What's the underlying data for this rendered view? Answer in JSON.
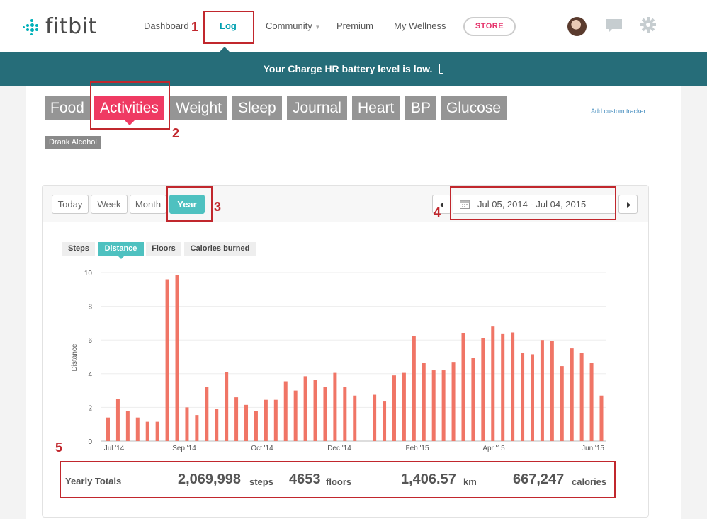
{
  "logo": {
    "text": "fitbit"
  },
  "nav": {
    "dashboard": "Dashboard",
    "log": "Log",
    "community": "Community",
    "premium": "Premium",
    "wellness": "My Wellness",
    "store": "STORE"
  },
  "banner": {
    "text": "Your Charge HR battery level is low."
  },
  "trackers": [
    "Food",
    "Activities",
    "Weight",
    "Sleep",
    "Journal",
    "Heart",
    "BP",
    "Glucose"
  ],
  "active_tracker": "Activities",
  "add_custom": "Add custom tracker",
  "drank_alcohol": "Drank Alcohol",
  "ranges": [
    "Today",
    "Week",
    "Month",
    "Year"
  ],
  "active_range": "Year",
  "date_range": "Jul 05, 2014 - Jul 04, 2015",
  "metrics": [
    "Steps",
    "Distance",
    "Floors",
    "Calories burned"
  ],
  "active_metric": "Distance",
  "chart_data": {
    "type": "bar",
    "title": "",
    "xlabel": "",
    "ylabel": "Distance",
    "ylim": [
      0,
      10
    ],
    "yticks": [
      "0",
      "2",
      "4",
      "6",
      "8",
      "10"
    ],
    "xticks": [
      "Jul '14",
      "Sep '14",
      "Oct '14",
      "Dec '14",
      "Feb '15",
      "Apr '15",
      "Jun '15"
    ],
    "values": [
      1.4,
      2.5,
      1.8,
      1.4,
      1.15,
      1.15,
      9.6,
      9.85,
      2.0,
      1.55,
      3.2,
      1.9,
      4.1,
      2.6,
      2.15,
      1.8,
      2.45,
      2.45,
      3.55,
      3.0,
      3.85,
      3.65,
      3.2,
      4.05,
      3.2,
      2.7,
      0,
      2.75,
      2.35,
      3.9,
      4.05,
      6.25,
      4.65,
      4.2,
      4.2,
      4.7,
      6.4,
      4.95,
      6.1,
      6.8,
      6.35,
      6.45,
      5.25,
      5.15,
      6.0,
      5.95,
      4.45,
      5.5,
      5.25,
      4.65,
      2.7
    ],
    "bar_color": "#f07566"
  },
  "totals": {
    "label": "Yearly Totals",
    "steps_value": "2,069,998",
    "steps_unit": "steps",
    "floors_value": "4653",
    "floors_unit": "floors",
    "km_value": "1,406.57",
    "km_unit": "km",
    "calories_value": "667,247",
    "calories_unit": "calories"
  },
  "annotations": [
    "1",
    "2",
    "3",
    "4",
    "5"
  ],
  "colors": {
    "teal": "#4ec1c0",
    "banner": "#266d79",
    "pink": "#ef3a63",
    "annotation": "#c1272d"
  }
}
